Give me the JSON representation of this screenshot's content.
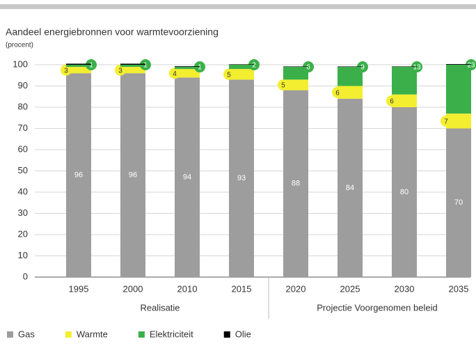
{
  "chart_data": {
    "type": "stacked_bar",
    "title": "Aandeel energiebronnen voor warmtevoorziening",
    "subtitle": "(procent)",
    "categories": [
      "1995",
      "2000",
      "2010",
      "2015",
      "2020",
      "2025",
      "2030",
      "2035"
    ],
    "groups": [
      {
        "name": "Realisatie",
        "size": 4
      },
      {
        "name": "Projectie Voorgenomen beleid",
        "size": 4
      }
    ],
    "series": [
      {
        "name": "Gas",
        "color": "#9d9d9d",
        "values": [
          96,
          96,
          94,
          93,
          88,
          84,
          80,
          70
        ]
      },
      {
        "name": "Warmte",
        "color": "#f3ee2f",
        "values": [
          3,
          3,
          4,
          5,
          5,
          6,
          6,
          7
        ]
      },
      {
        "name": "Elektriciteit",
        "color": "#3bb04a",
        "values": [
          1,
          1,
          1,
          2,
          6,
          9,
          13,
          23
        ]
      },
      {
        "name": "Olie",
        "color": "#000000",
        "values": [
          0.5,
          0.5,
          0.3,
          0.2,
          0.2,
          0.2,
          0.2,
          0.3
        ]
      }
    ],
    "ylim": [
      0,
      100
    ],
    "yticks": [
      0,
      10,
      20,
      30,
      40,
      50,
      60,
      70,
      80,
      90,
      100
    ],
    "grid": true
  }
}
